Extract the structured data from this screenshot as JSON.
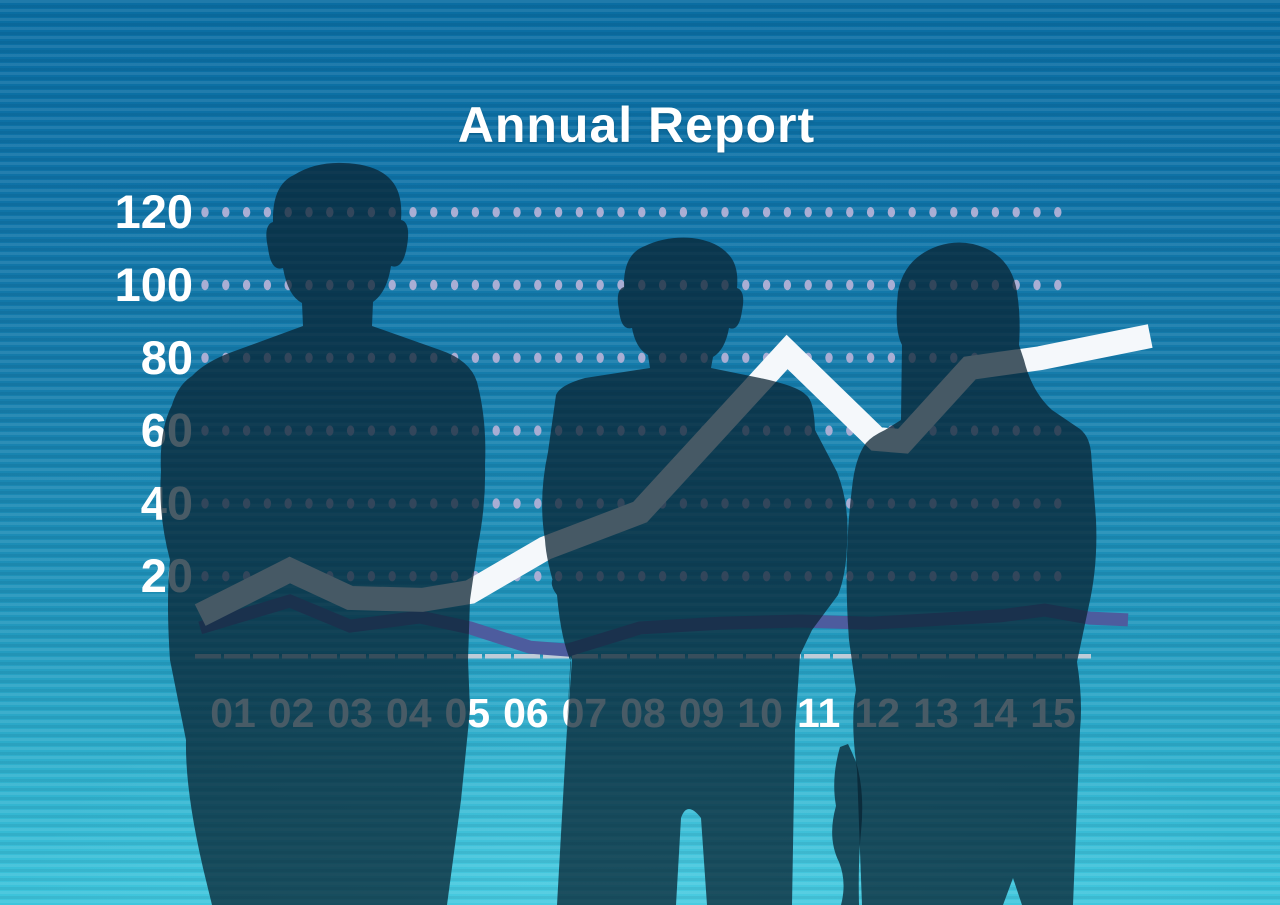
{
  "title": "Annual Report",
  "colors": {
    "background_top": "#0a6da2",
    "background_bottom": "#3ec5dc",
    "title_text": "#ffffff",
    "axis_tick_text": "#ffffff",
    "grid_dot": "#a9aed4",
    "axis_ruler": "#bfccd8",
    "series_main": "#f5f8fb",
    "series_secondary": "#4d5c9e",
    "silhouette": "#082231"
  },
  "silhouettes": {
    "color": "#082231",
    "opacity": 0.74,
    "figures": [
      "man-left",
      "man-center",
      "woman-right",
      "hand-right-of-center"
    ]
  },
  "chart_data": {
    "type": "line",
    "title": "Annual Report",
    "xlabel": "",
    "ylabel": "",
    "x_tick_labels": [
      "01",
      "02",
      "03",
      "04",
      "05",
      "06",
      "07",
      "08",
      "09",
      "10",
      "11",
      "12",
      "13",
      "14",
      "15"
    ],
    "y_tick_labels": [
      "120",
      "100",
      "80",
      "60",
      "40",
      "20"
    ],
    "y_tick_values": [
      120,
      100,
      80,
      60,
      40,
      20
    ],
    "ylim": [
      0,
      130
    ],
    "grid": "dotted horizontal rows at each y tick",
    "legend_position": "none",
    "series": [
      {
        "name": "main-trend",
        "style": "thick white line, appears gray where business-people silhouettes overlap it",
        "points": [
          {
            "x": 0.44,
            "v": 9.3
          },
          {
            "x": 1.97,
            "v": 21.7
          },
          {
            "x": 3.0,
            "v": 14.0
          },
          {
            "x": 4.23,
            "v": 13.5
          },
          {
            "x": 5.05,
            "v": 15.7
          },
          {
            "x": 6.33,
            "v": 27.7
          },
          {
            "x": 7.95,
            "v": 37.6
          },
          {
            "x": 10.46,
            "v": 81.6
          },
          {
            "x": 11.99,
            "v": 57.7
          },
          {
            "x": 12.44,
            "v": 57.1
          },
          {
            "x": 13.58,
            "v": 77.2
          },
          {
            "x": 14.78,
            "v": 79.9
          },
          {
            "x": 16.66,
            "v": 86.0
          }
        ]
      },
      {
        "name": "secondary-trend",
        "style": "thin dark slate-blue line near baseline",
        "points": [
          {
            "x": 0.44,
            "v": 5.8
          },
          {
            "x": 1.97,
            "v": 13.2
          },
          {
            "x": 3.0,
            "v": 6.3
          },
          {
            "x": 4.19,
            "v": 8.8
          },
          {
            "x": 5.05,
            "v": 5.8
          },
          {
            "x": 6.07,
            "v": 0.5
          },
          {
            "x": 6.72,
            "v": -0.3
          },
          {
            "x": 7.95,
            "v": 5.8
          },
          {
            "x": 9.31,
            "v": 7.1
          },
          {
            "x": 10.68,
            "v": 7.7
          },
          {
            "x": 11.88,
            "v": 7.1
          },
          {
            "x": 13.07,
            "v": 8.2
          },
          {
            "x": 14.1,
            "v": 9.1
          },
          {
            "x": 14.86,
            "v": 10.7
          },
          {
            "x": 15.63,
            "v": 8.5
          },
          {
            "x": 16.28,
            "v": 8.0
          }
        ]
      }
    ]
  }
}
